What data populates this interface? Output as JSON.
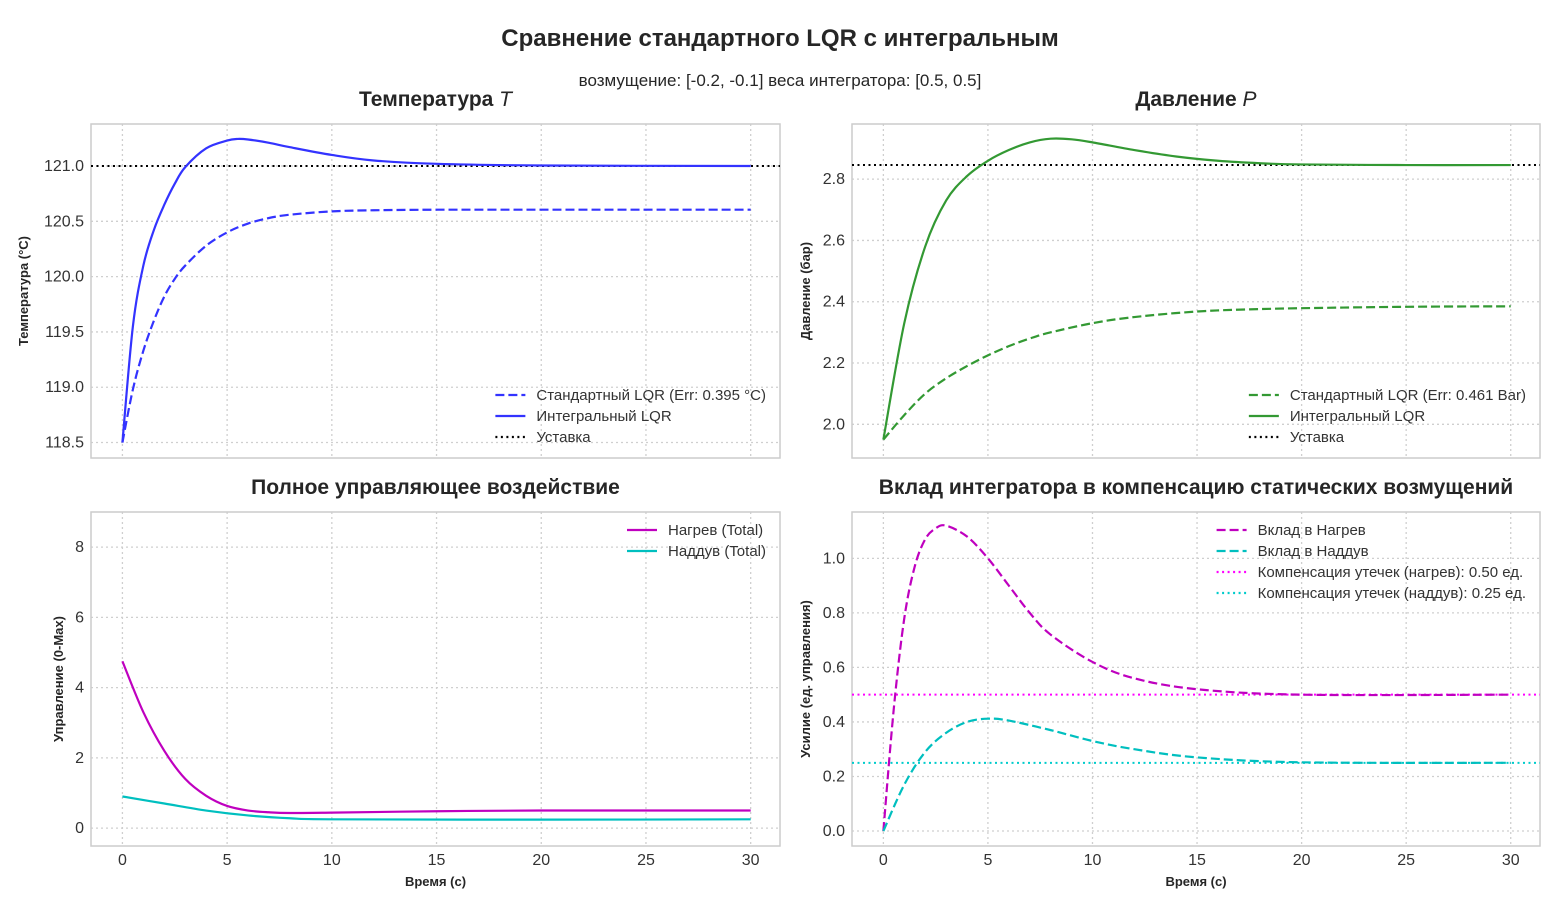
{
  "header": {
    "title": "Сравнение  стандартного LQR с интегральным",
    "subtitle": "возмущение: [-0.2, -0.1]  веса интегратора: [0.5, 0.5]"
  },
  "chart_data": [
    {
      "type": "line",
      "title": "Температура ",
      "title_var": "T",
      "xlabel": "",
      "ylabel": "Температура (°C)",
      "xlim": [
        -1.5,
        31.4
      ],
      "ylim": [
        118.36,
        121.38
      ],
      "xticks": [
        "0",
        "5",
        "10",
        "15",
        "20",
        "25",
        "30"
      ],
      "show_xticklabels": false,
      "yticks": [
        "118.5",
        "119.0",
        "119.5",
        "120.0",
        "120.5",
        "121.0"
      ],
      "grid": true,
      "legend": "bottom-right",
      "series": [
        {
          "name": "Стандартный LQR (Err: 0.395 °C)",
          "color": "#3333ff",
          "style": "dashed",
          "points": [
            [
              0,
              118.5
            ],
            [
              0.5,
              118.98
            ],
            [
              1,
              119.33
            ],
            [
              1.5,
              119.6
            ],
            [
              2,
              119.82
            ],
            [
              2.5,
              119.98
            ],
            [
              3,
              120.1
            ],
            [
              4,
              120.28
            ],
            [
              5,
              120.4
            ],
            [
              6,
              120.48
            ],
            [
              7,
              120.53
            ],
            [
              8,
              120.56
            ],
            [
              10,
              120.59
            ],
            [
              12,
              120.6
            ],
            [
              15,
              120.605
            ],
            [
              20,
              120.605
            ],
            [
              30,
              120.605
            ]
          ]
        },
        {
          "name": "Интегральный LQR",
          "color": "#3333ff",
          "style": "solid",
          "points": [
            [
              0,
              118.5
            ],
            [
              0.5,
              119.55
            ],
            [
              1,
              120.1
            ],
            [
              1.5,
              120.42
            ],
            [
              2,
              120.65
            ],
            [
              2.5,
              120.84
            ],
            [
              3,
              120.99
            ],
            [
              4,
              121.16
            ],
            [
              5,
              121.23
            ],
            [
              5.5,
              121.245
            ],
            [
              6,
              121.24
            ],
            [
              7,
              121.21
            ],
            [
              8,
              121.17
            ],
            [
              10,
              121.1
            ],
            [
              12,
              121.05
            ],
            [
              15,
              121.02
            ],
            [
              20,
              121.005
            ],
            [
              30,
              121.0
            ]
          ]
        }
      ],
      "hlines": [
        {
          "name": "Уставка",
          "color": "#000000",
          "style": "dotted",
          "y": 121.0
        }
      ]
    },
    {
      "type": "line",
      "title": "Давление ",
      "title_var": "P",
      "xlabel": "",
      "ylabel": "Давление (бар)",
      "xlim": [
        -1.5,
        31.4
      ],
      "ylim": [
        1.89,
        2.98
      ],
      "xticks": [
        "0",
        "5",
        "10",
        "15",
        "20",
        "25",
        "30"
      ],
      "show_xticklabels": false,
      "yticks": [
        "2.0",
        "2.2",
        "2.4",
        "2.6",
        "2.8"
      ],
      "grid": true,
      "legend": "bottom-right",
      "series": [
        {
          "name": "Стандартный LQR (Err: 0.461 Bar)",
          "color": "#339933",
          "style": "dashed",
          "points": [
            [
              0,
              1.95
            ],
            [
              1,
              2.03
            ],
            [
              2,
              2.1
            ],
            [
              3,
              2.15
            ],
            [
              4,
              2.19
            ],
            [
              5,
              2.225
            ],
            [
              6,
              2.255
            ],
            [
              7,
              2.28
            ],
            [
              8,
              2.3
            ],
            [
              10,
              2.33
            ],
            [
              12,
              2.35
            ],
            [
              15,
              2.368
            ],
            [
              18,
              2.376
            ],
            [
              22,
              2.381
            ],
            [
              26,
              2.384
            ],
            [
              30,
              2.385
            ]
          ]
        },
        {
          "name": "Интегральный LQR",
          "color": "#339933",
          "style": "solid",
          "points": [
            [
              0,
              1.95
            ],
            [
              1,
              2.33
            ],
            [
              2,
              2.58
            ],
            [
              3,
              2.73
            ],
            [
              4,
              2.81
            ],
            [
              5,
              2.86
            ],
            [
              6,
              2.895
            ],
            [
              7,
              2.92
            ],
            [
              8,
              2.932
            ],
            [
              9,
              2.93
            ],
            [
              10,
              2.92
            ],
            [
              12,
              2.895
            ],
            [
              14,
              2.874
            ],
            [
              16,
              2.86
            ],
            [
              18,
              2.852
            ],
            [
              20,
              2.848
            ],
            [
              25,
              2.846
            ],
            [
              30,
              2.846
            ]
          ]
        }
      ],
      "hlines": [
        {
          "name": "Уставка",
          "color": "#000000",
          "style": "dotted",
          "y": 2.846
        }
      ]
    },
    {
      "type": "line",
      "title": "Полное управляющее воздействие",
      "title_var": "",
      "xlabel": "Время (с)",
      "ylabel": "Управление (0-Max)",
      "xlim": [
        -1.5,
        31.4
      ],
      "ylim": [
        -0.51,
        9.0
      ],
      "xticks": [
        "0",
        "5",
        "10",
        "15",
        "20",
        "25",
        "30"
      ],
      "show_xticklabels": true,
      "yticks": [
        "0",
        "2",
        "4",
        "6",
        "8"
      ],
      "grid": true,
      "legend": "top-right",
      "series": [
        {
          "name": "Нагрев (Total)",
          "color": "#bf00bf",
          "style": "solid",
          "points": [
            [
              0,
              4.75
            ],
            [
              1,
              3.3
            ],
            [
              2,
              2.2
            ],
            [
              3,
              1.4
            ],
            [
              4,
              0.92
            ],
            [
              5,
              0.63
            ],
            [
              6,
              0.5
            ],
            [
              7,
              0.45
            ],
            [
              8,
              0.43
            ],
            [
              10,
              0.44
            ],
            [
              15,
              0.48
            ],
            [
              20,
              0.5
            ],
            [
              30,
              0.5
            ]
          ]
        },
        {
          "name": "Наддув (Total)",
          "color": "#00bfbf",
          "style": "solid",
          "points": [
            [
              0,
              0.9
            ],
            [
              2,
              0.7
            ],
            [
              4,
              0.5
            ],
            [
              6,
              0.36
            ],
            [
              8,
              0.28
            ],
            [
              10,
              0.25
            ],
            [
              20,
              0.24
            ],
            [
              30,
              0.25
            ]
          ]
        }
      ],
      "hlines": []
    },
    {
      "type": "line",
      "title": "Вклад интегратора в компенсацию статических возмущений",
      "title_var": "",
      "xlabel": "Время (с)",
      "ylabel": "Усилие (ед. управления)",
      "xlim": [
        -1.5,
        31.4
      ],
      "ylim": [
        -0.055,
        1.17
      ],
      "xticks": [
        "0",
        "5",
        "10",
        "15",
        "20",
        "25",
        "30"
      ],
      "show_xticklabels": true,
      "yticks": [
        "0.0",
        "0.2",
        "0.4",
        "0.6",
        "0.8",
        "1.0"
      ],
      "grid": true,
      "legend": "top-right",
      "series": [
        {
          "name": "Вклад в Нагрев",
          "color": "#bf00bf",
          "style": "dashed",
          "points": [
            [
              0,
              0
            ],
            [
              0.5,
              0.45
            ],
            [
              1,
              0.78
            ],
            [
              1.5,
              0.97
            ],
            [
              2,
              1.07
            ],
            [
              2.5,
              1.11
            ],
            [
              3,
              1.12
            ],
            [
              4,
              1.08
            ],
            [
              5,
              1.0
            ],
            [
              6,
              0.9
            ],
            [
              7,
              0.8
            ],
            [
              8,
              0.72
            ],
            [
              10,
              0.62
            ],
            [
              12,
              0.56
            ],
            [
              15,
              0.52
            ],
            [
              20,
              0.5
            ],
            [
              30,
              0.5
            ]
          ]
        },
        {
          "name": "Вклад в Наддув",
          "color": "#00bfbf",
          "style": "dashed",
          "points": [
            [
              0,
              0
            ],
            [
              1,
              0.17
            ],
            [
              2,
              0.29
            ],
            [
              3,
              0.36
            ],
            [
              4,
              0.4
            ],
            [
              5,
              0.412
            ],
            [
              6,
              0.405
            ],
            [
              8,
              0.37
            ],
            [
              10,
              0.33
            ],
            [
              12,
              0.3
            ],
            [
              15,
              0.27
            ],
            [
              20,
              0.252
            ],
            [
              30,
              0.25
            ]
          ]
        }
      ],
      "hlines": [
        {
          "name": "Компенсация утечек (нагрев): 0.50 ед.",
          "color": "#ff00ff",
          "style": "dotted",
          "y": 0.5
        },
        {
          "name": "Компенсация утечек (наддув): 0.25 ед.",
          "color": "#00cccc",
          "style": "dotted",
          "y": 0.25
        }
      ]
    }
  ]
}
